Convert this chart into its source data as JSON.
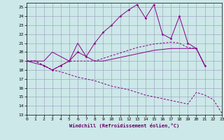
{
  "background_color": "#cce8e8",
  "grid_color": "#9999bb",
  "line_color": "#880088",
  "xlabel": "Windchill (Refroidissement éolien,°C)",
  "xlim": [
    0,
    23
  ],
  "ylim": [
    13,
    25.5
  ],
  "yticks": [
    13,
    14,
    15,
    16,
    17,
    18,
    19,
    20,
    21,
    22,
    23,
    24,
    25
  ],
  "xticks": [
    0,
    1,
    2,
    3,
    4,
    5,
    6,
    7,
    8,
    9,
    10,
    11,
    12,
    13,
    14,
    15,
    16,
    17,
    18,
    19,
    20,
    21,
    22,
    23
  ],
  "line_marked_x": [
    0,
    2,
    3,
    4,
    5,
    6,
    7,
    8,
    9,
    10,
    11,
    12,
    13,
    14,
    15,
    16,
    17,
    18,
    19,
    20,
    21
  ],
  "line_marked_y": [
    19,
    18.5,
    18,
    18.5,
    19,
    20,
    19.5,
    21,
    22.2,
    23.0,
    24.0,
    24.7,
    25.3,
    23.8,
    25.3,
    22.0,
    21.5,
    24.0,
    21,
    20.4,
    18.5
  ],
  "line_solid_x": [
    0,
    1,
    2,
    3,
    4,
    5,
    6,
    7,
    8,
    9,
    10,
    11,
    12,
    13,
    14,
    15,
    16,
    17,
    18,
    19,
    20,
    21
  ],
  "line_solid_y": [
    19,
    19,
    19,
    20,
    19.5,
    19,
    21,
    19.5,
    19,
    19,
    19.2,
    19.4,
    19.6,
    19.8,
    20.0,
    20.2,
    20.3,
    20.4,
    20.4,
    20.4,
    20.4,
    18.5
  ],
  "line_dash_up_x": [
    0,
    1,
    2,
    3,
    4,
    5,
    6,
    7,
    8,
    9,
    10,
    11,
    12,
    13,
    14,
    15,
    16,
    17,
    18,
    19,
    20,
    21
  ],
  "line_dash_up_y": [
    19,
    19,
    18.5,
    18,
    18.5,
    19,
    19,
    19,
    19,
    19.3,
    19.6,
    19.9,
    20.2,
    20.5,
    20.7,
    20.9,
    21.0,
    21.1,
    21.0,
    20.5,
    20.4,
    18.5
  ],
  "line_dash_dn_x": [
    0,
    1,
    2,
    3,
    4,
    5,
    6,
    7,
    8,
    9,
    10,
    11,
    12,
    13,
    14,
    15,
    16,
    17,
    18,
    19,
    20,
    21,
    22,
    23
  ],
  "line_dash_dn_y": [
    19,
    19,
    18.5,
    18,
    17.8,
    17.5,
    17.2,
    17.0,
    16.8,
    16.5,
    16.2,
    16.0,
    15.8,
    15.5,
    15.2,
    15.0,
    14.8,
    14.6,
    14.4,
    14.2,
    15.5,
    15.2,
    14.7,
    13.2
  ]
}
